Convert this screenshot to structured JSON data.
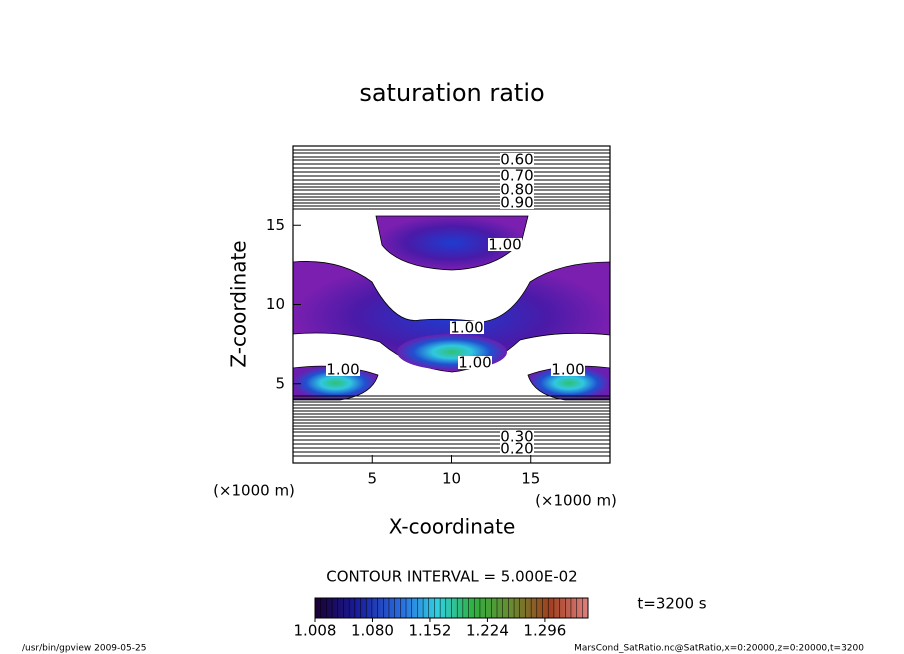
{
  "chart_data": {
    "type": "contour",
    "title": "saturation ratio",
    "xlabel": "X-coordinate",
    "ylabel": "Z-coordinate",
    "xunit": "(×1000 m)",
    "yunit": "(×1000 m)",
    "xlim": [
      0,
      20
    ],
    "ylim": [
      0,
      20
    ],
    "xticks": [
      5,
      10,
      15
    ],
    "yticks": [
      5,
      10,
      15
    ],
    "contour_levels": [
      {
        "value": 0.6,
        "label": "0.60"
      },
      {
        "value": 0.7,
        "label": "0.70"
      },
      {
        "value": 0.8,
        "label": "0.80"
      },
      {
        "value": 0.9,
        "label": "0.90"
      },
      {
        "value": 1.0,
        "label": "1.00"
      },
      {
        "value": 0.3,
        "label": "0.30"
      },
      {
        "value": 0.2,
        "label": "0.20"
      }
    ],
    "contour_interval": "CONTOUR INTERVAL = 5.000E-02",
    "colorbar": {
      "range": [
        1.008,
        1.35
      ],
      "ticks": [
        1.008,
        {
          "value": 1.08,
          "label": "1.080"
        },
        1.152,
        1.224,
        1.296
      ]
    },
    "time_label": "t=3200 s",
    "footer_left": "/usr/bin/gpview  2009-05-25",
    "footer_right": "MarsCond_SatRatio.nc@SatRatio,x=0:20000,z=0:20000,t=3200"
  }
}
